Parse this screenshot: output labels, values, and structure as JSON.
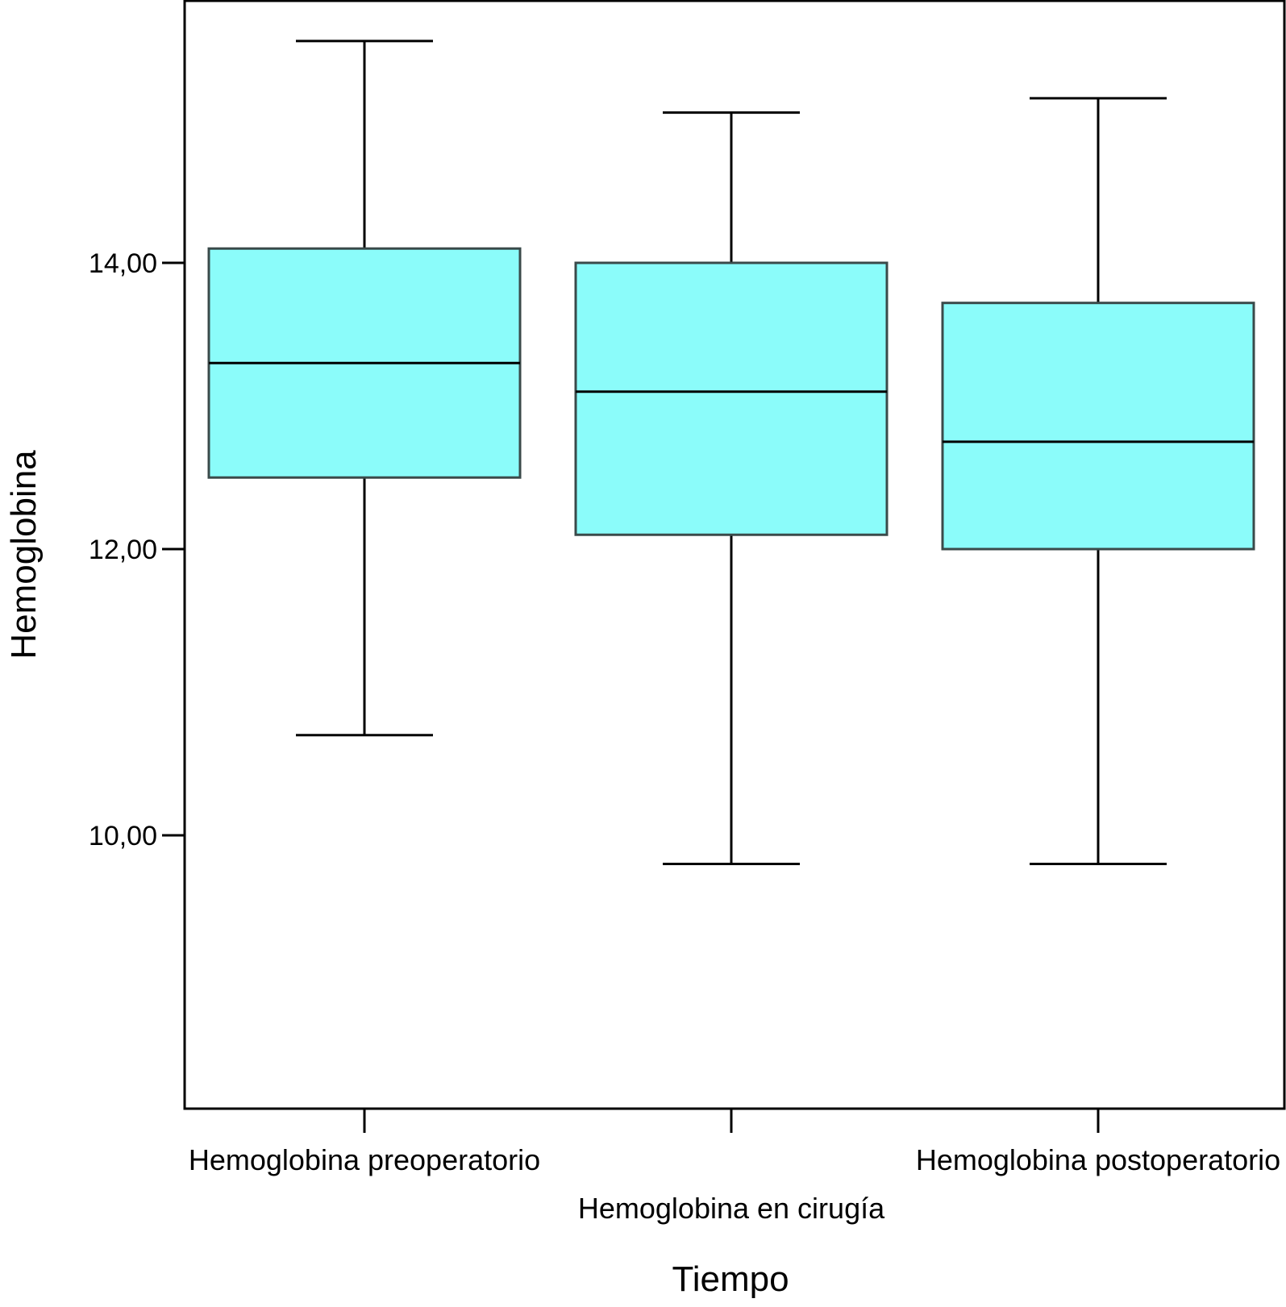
{
  "chart_data": {
    "type": "boxplot",
    "title": "",
    "xlabel": "Tiempo",
    "ylabel": "Hemoglobina",
    "ylim": [
      8.0,
      15.75
    ],
    "yticks": [
      10.0,
      12.0,
      14.0
    ],
    "ytick_labels": [
      "10,00",
      "12,00",
      "14,00"
    ],
    "grid": false,
    "legend": "none",
    "categories": [
      "Hemoglobina preoperatorio",
      "Hemoglobina en cirugía",
      "Hemoglobina postoperatorio"
    ],
    "boxes": [
      {
        "category": "Hemoglobina preoperatorio",
        "min": 10.7,
        "q1": 12.5,
        "median": 13.3,
        "q3": 14.1,
        "max": 15.55
      },
      {
        "category": "Hemoglobina en cirugía",
        "min": 9.8,
        "q1": 12.1,
        "median": 13.1,
        "q3": 14.0,
        "max": 15.05
      },
      {
        "category": "Hemoglobina postoperatorio",
        "min": 9.8,
        "q1": 12.0,
        "median": 12.75,
        "q3": 13.72,
        "max": 15.15
      }
    ],
    "colors": {
      "box_fill": "#8BFCFA",
      "box_stroke": "#3a4a4a",
      "line": "#000000"
    }
  }
}
